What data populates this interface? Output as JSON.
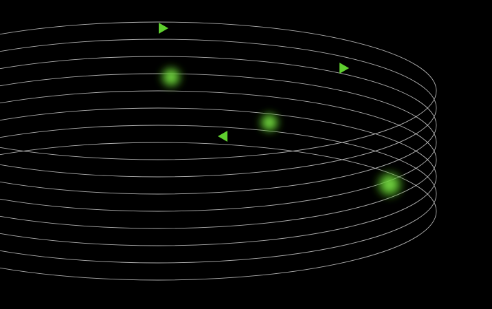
{
  "scene": {
    "background_color": "#000000",
    "orbit_color": "#cfcfcf",
    "arrow_color": "#5fcf2f",
    "glow_color": "#6fd63a",
    "orbit_count": 8,
    "glow_count": 3,
    "arrow_count": 3
  }
}
